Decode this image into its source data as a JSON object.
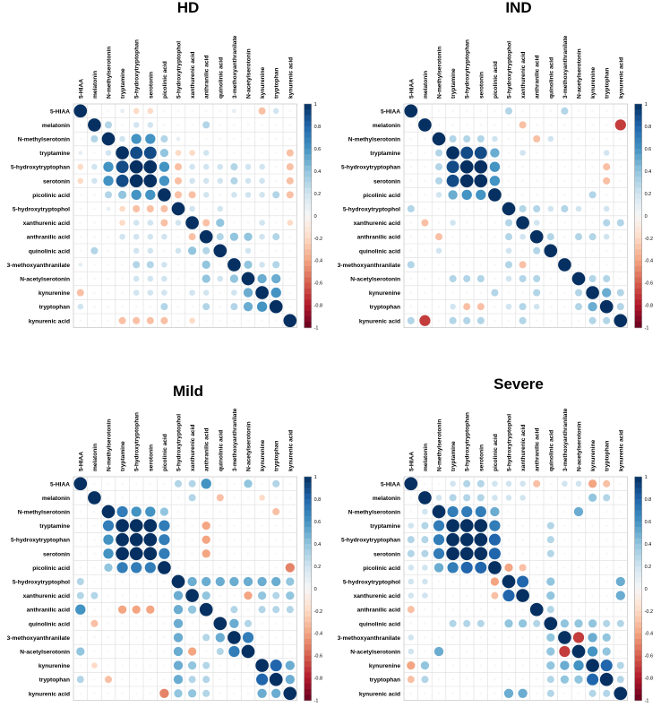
{
  "figure": {
    "variables": [
      "5-HIAA",
      "melatonin",
      "N-methylserotonin",
      "tryptamine",
      "5-hydroxytryptophan",
      "serotonin",
      "picolinic acid",
      "5-hydroxytryptophol",
      "xanthurenic acid",
      "anthranilic acid",
      "quinolinic acid",
      "3-methoxyanthranilate",
      "N-acetylserotonin",
      "kynurenine",
      "tryptophan",
      "kynurenic acid"
    ],
    "colorbar_ticks": [
      "1",
      "0.8",
      "0.6",
      "0.4",
      "0.2",
      "0",
      "-0.2",
      "-0.4",
      "-0.6",
      "-0.8",
      "-1"
    ],
    "colors": {
      "positive": "#053061",
      "mid": "#f7f7f7",
      "negative": "#67001f",
      "grid": "#dddddd"
    }
  },
  "chart_data": [
    {
      "type": "heatmap",
      "title": "HD",
      "value_range": [
        -1,
        1
      ],
      "matrix": [
        [
          1,
          0,
          0,
          0.1,
          -0.2,
          -0.2,
          0,
          0,
          0,
          0,
          0,
          0.1,
          0,
          -0.3,
          0.2,
          0
        ],
        [
          0,
          1,
          0.3,
          0,
          0.2,
          0.2,
          0,
          0,
          0,
          0.3,
          0,
          0,
          0,
          0,
          0,
          0
        ],
        [
          0,
          0.3,
          1,
          0.2,
          0.6,
          0.6,
          0.3,
          0.1,
          0,
          0,
          0,
          0,
          0,
          0,
          0,
          0
        ],
        [
          0.1,
          0,
          0.2,
          1,
          0.9,
          0.9,
          0.4,
          -0.2,
          -0.2,
          0.2,
          0,
          0,
          0,
          0,
          0,
          -0.3
        ],
        [
          -0.2,
          0.2,
          0.6,
          0.9,
          1,
          1,
          0.6,
          -0.3,
          0.2,
          0.2,
          0.2,
          0.3,
          0.2,
          0.2,
          0,
          -0.3
        ],
        [
          -0.2,
          0.2,
          0.6,
          0.9,
          1,
          1,
          0.6,
          -0.3,
          0.2,
          0.2,
          0.2,
          0.3,
          0.2,
          0.2,
          0,
          -0.3
        ],
        [
          0,
          0,
          0.3,
          0.4,
          0.6,
          0.6,
          1,
          -0.3,
          -0.3,
          0.2,
          0,
          0.2,
          0.2,
          0.2,
          0.3,
          -0.3
        ],
        [
          0,
          0,
          0.1,
          -0.2,
          -0.3,
          -0.3,
          -0.3,
          1,
          0.2,
          0,
          0.2,
          0,
          0,
          0,
          0,
          0
        ],
        [
          0,
          0,
          0,
          -0.2,
          0.2,
          0.2,
          -0.3,
          0.2,
          1,
          -0.3,
          0.4,
          0,
          0,
          0.2,
          0,
          -0.2
        ],
        [
          0,
          0,
          0,
          0.2,
          0.2,
          0.2,
          0.2,
          0,
          -0.3,
          1,
          0.3,
          0.4,
          0.4,
          0.2,
          0.3,
          0
        ],
        [
          0,
          0.3,
          0,
          0,
          0.2,
          0.2,
          0,
          0.2,
          0.4,
          0.3,
          1,
          0,
          0.2,
          0,
          0,
          0
        ],
        [
          0.1,
          0,
          0,
          0,
          0.3,
          0.3,
          0.2,
          0,
          0,
          0.4,
          0,
          1,
          0.4,
          0.2,
          0.3,
          0
        ],
        [
          0,
          0,
          0,
          0,
          0.2,
          0.2,
          0.2,
          0,
          0,
          0.4,
          0.2,
          0.4,
          1,
          0.5,
          0.5,
          0
        ],
        [
          -0.3,
          0,
          0,
          0,
          0.2,
          0.2,
          0.2,
          0,
          0.2,
          0.2,
          0,
          0.2,
          0.5,
          1,
          0.6,
          0
        ],
        [
          0.2,
          0,
          0,
          0,
          0,
          0,
          0.3,
          0,
          0,
          0.3,
          0,
          0.3,
          0.5,
          0.6,
          1,
          0
        ],
        [
          0,
          0,
          0,
          -0.3,
          -0.3,
          -0.3,
          -0.3,
          0,
          -0.2,
          0,
          0,
          0,
          0,
          0,
          0,
          1
        ]
      ]
    },
    {
      "type": "heatmap",
      "title": "IND",
      "value_range": [
        -1,
        1
      ],
      "matrix": [
        [
          1,
          0,
          0,
          0,
          0,
          0,
          0,
          0.3,
          0,
          0,
          0,
          0.3,
          0,
          0,
          0,
          0
        ],
        [
          0,
          1,
          0,
          0,
          0,
          0,
          0,
          0,
          -0.3,
          0,
          0,
          0,
          0,
          0,
          0,
          -0.7
        ],
        [
          0,
          0,
          1,
          0.3,
          0.3,
          0.3,
          0.2,
          0,
          0,
          -0.3,
          0.2,
          0,
          0,
          0,
          0,
          0
        ],
        [
          0,
          0,
          0.3,
          1,
          0.9,
          0.9,
          0.5,
          0,
          0.2,
          0,
          0,
          0,
          0,
          0,
          0.2,
          0
        ],
        [
          0,
          0,
          0.3,
          0.9,
          1,
          1,
          0.6,
          0,
          0,
          0,
          0,
          0,
          0,
          0,
          -0.3,
          0
        ],
        [
          0,
          0,
          0.3,
          0.9,
          1,
          1,
          0.6,
          0,
          0,
          0,
          0,
          0,
          0,
          0,
          -0.3,
          0
        ],
        [
          0,
          0,
          0.2,
          0.5,
          0.6,
          0.6,
          1,
          0,
          0,
          0,
          0,
          0,
          0,
          0.3,
          0,
          0
        ],
        [
          0.3,
          0,
          0,
          0,
          0,
          0,
          0,
          1,
          0.3,
          0.3,
          0.2,
          0.3,
          0.2,
          0,
          0.2,
          0
        ],
        [
          0,
          -0.3,
          0,
          0.2,
          0,
          0,
          0,
          0.3,
          1,
          0.2,
          0,
          0,
          0,
          0,
          0.3,
          0.3
        ],
        [
          0,
          0,
          -0.3,
          0,
          0,
          0,
          0,
          0.3,
          0.2,
          1,
          0.3,
          0,
          0.3,
          0.3,
          0.2,
          0
        ],
        [
          0,
          0,
          0.2,
          0,
          0,
          0,
          0,
          0.2,
          0,
          0.3,
          1,
          0,
          0,
          0,
          0,
          0
        ],
        [
          0.3,
          0,
          0,
          0,
          0,
          0,
          0,
          0.3,
          -0.3,
          0,
          0,
          1,
          0,
          0,
          0,
          0
        ],
        [
          0,
          0,
          0,
          0.3,
          0.3,
          0.3,
          0,
          0.2,
          0.3,
          0.3,
          0,
          0,
          1,
          0.3,
          0.3,
          0
        ],
        [
          0,
          0,
          0,
          0,
          0,
          0,
          0.3,
          0,
          0,
          0.3,
          0,
          0,
          0.3,
          1,
          0.5,
          0.3
        ],
        [
          0,
          0,
          0,
          0.2,
          -0.3,
          -0.3,
          0,
          0.2,
          0.3,
          0.2,
          0,
          0,
          0.3,
          0.5,
          1,
          0.3
        ],
        [
          0.3,
          -0.7,
          0,
          0.3,
          0.3,
          0.3,
          0,
          0,
          0.3,
          0,
          0,
          0,
          0,
          0.3,
          0.3,
          1
        ]
      ]
    },
    {
      "type": "heatmap",
      "title": "Mild",
      "value_range": [
        -1,
        1
      ],
      "matrix": [
        [
          1,
          0,
          0,
          0,
          0,
          0,
          0,
          0.3,
          0.3,
          0.6,
          0,
          0,
          0.4,
          0,
          0.3,
          0
        ],
        [
          0,
          1,
          0,
          0,
          0,
          0,
          0,
          0,
          0.3,
          0,
          -0.3,
          0,
          0,
          -0.2,
          0,
          0
        ],
        [
          0,
          0,
          1,
          0.7,
          0.6,
          0.6,
          0.4,
          0,
          0,
          0,
          0,
          0,
          0,
          0,
          -0.3,
          0
        ],
        [
          0,
          0,
          0.7,
          1,
          1,
          1,
          0.7,
          0,
          0,
          -0.4,
          0,
          0,
          0,
          0,
          0,
          0
        ],
        [
          0,
          0,
          0.6,
          1,
          1,
          1,
          0.7,
          0,
          0,
          -0.4,
          0,
          0,
          0,
          0,
          0,
          0
        ],
        [
          0,
          0,
          0.6,
          1,
          1,
          1,
          0.7,
          0,
          0,
          -0.4,
          0,
          0,
          0,
          0,
          0,
          0
        ],
        [
          0,
          0,
          0.4,
          0.7,
          0.7,
          0.7,
          1,
          0,
          0,
          0,
          0,
          0,
          0,
          0,
          0,
          -0.5
        ],
        [
          0.3,
          0,
          0,
          0,
          0,
          0,
          0,
          1,
          0.5,
          0.5,
          0.5,
          0.5,
          0.5,
          0.5,
          0.5,
          0.4
        ],
        [
          0.3,
          0.3,
          0,
          0,
          0,
          0,
          0,
          0.5,
          1,
          0.4,
          0,
          0,
          -0.4,
          0.4,
          0.3,
          0.4
        ],
        [
          0.6,
          0,
          0,
          -0.4,
          -0.4,
          -0.4,
          0,
          0.5,
          0.4,
          1,
          0,
          0.3,
          0,
          0.3,
          0.3,
          0.3
        ],
        [
          0,
          -0.3,
          0,
          0,
          0,
          0,
          0,
          0.5,
          0,
          0,
          1,
          0.5,
          0.3,
          0,
          0,
          0
        ],
        [
          0,
          0,
          0,
          0,
          0,
          0,
          0,
          0.5,
          0,
          0.3,
          0.5,
          1,
          0.7,
          0,
          0,
          0
        ],
        [
          0.4,
          0,
          0,
          0,
          0,
          0,
          0,
          0.5,
          -0.4,
          0,
          0.3,
          0.7,
          1,
          0,
          0,
          0
        ],
        [
          0,
          -0.2,
          0,
          0,
          0,
          0,
          0,
          0.5,
          0.4,
          0.3,
          0,
          0,
          0,
          1,
          0.8,
          0.5
        ],
        [
          0.3,
          0,
          -0.3,
          0,
          0,
          0,
          0,
          0.5,
          0.3,
          0.3,
          0,
          0,
          0,
          0.8,
          1,
          0.5
        ],
        [
          0,
          0,
          0,
          0,
          0,
          0,
          -0.5,
          0.4,
          0.4,
          0.3,
          0,
          0,
          0,
          0.5,
          0.5,
          1
        ]
      ]
    },
    {
      "type": "heatmap",
      "title": "Severe",
      "value_range": [
        -1,
        1
      ],
      "matrix": [
        [
          1,
          0,
          0,
          0.2,
          0.3,
          0.3,
          0.2,
          0.2,
          0.2,
          -0.3,
          0,
          0.2,
          0.2,
          -0.4,
          -0.3,
          0
        ],
        [
          0,
          1,
          0.2,
          0.3,
          0.3,
          0.3,
          0.2,
          0.2,
          0.2,
          0,
          0,
          0,
          0,
          0.4,
          0.3,
          0
        ],
        [
          0,
          0.2,
          1,
          0.7,
          0.7,
          0.7,
          0.5,
          0,
          0,
          0,
          0,
          0,
          0.5,
          0,
          0,
          0
        ],
        [
          0.2,
          0.3,
          0.7,
          1,
          1,
          1,
          0.7,
          0,
          0,
          0,
          0.3,
          0,
          0,
          0,
          0,
          0
        ],
        [
          0.3,
          0.3,
          0.7,
          1,
          1,
          1,
          0.8,
          0,
          0,
          0,
          0.3,
          0,
          0,
          0,
          0,
          0
        ],
        [
          0.3,
          0.3,
          0.7,
          1,
          1,
          1,
          0.8,
          0,
          0,
          0,
          0.3,
          0,
          0,
          0,
          0,
          0
        ],
        [
          0.2,
          0.2,
          0.5,
          0.7,
          0.8,
          0.8,
          1,
          -0.4,
          -0.3,
          0,
          0,
          0,
          0,
          0,
          0,
          0
        ],
        [
          0.2,
          0.2,
          0,
          0,
          0,
          0,
          -0.4,
          1,
          0.8,
          0,
          0.4,
          0,
          0,
          0,
          0,
          0.5
        ],
        [
          0.2,
          0.2,
          0,
          0,
          0,
          0,
          -0.3,
          0.8,
          1,
          0,
          0.4,
          0,
          0,
          0,
          0,
          0.5
        ],
        [
          -0.3,
          0,
          0,
          0,
          0,
          0,
          0,
          0,
          0,
          1,
          0.3,
          0,
          0,
          0,
          0,
          0
        ],
        [
          0,
          0,
          0,
          0.3,
          0.3,
          0.3,
          0,
          0.4,
          0.4,
          0.3,
          1,
          0.4,
          0.4,
          0.4,
          0.3,
          0.3
        ],
        [
          0.2,
          0,
          0,
          0,
          0,
          0,
          0,
          0,
          0,
          0,
          0.4,
          1,
          -0.7,
          0.5,
          0.4,
          0
        ],
        [
          0.2,
          0,
          0.5,
          0,
          0,
          0,
          0,
          0,
          0,
          0,
          0.4,
          -0.7,
          1,
          0.6,
          0.4,
          0
        ],
        [
          -0.4,
          0.4,
          0,
          0,
          0,
          0,
          0,
          0,
          0,
          0,
          0.4,
          0.5,
          0.6,
          1,
          0.8,
          0.3
        ],
        [
          -0.3,
          0.3,
          0,
          0,
          0,
          0,
          0,
          0,
          0,
          0,
          0.3,
          0.4,
          0.4,
          0.8,
          1,
          0.3
        ],
        [
          0,
          0,
          0,
          0,
          0,
          0,
          0,
          0.5,
          0.5,
          0,
          0.3,
          0,
          0,
          0.3,
          0.3,
          1
        ]
      ]
    }
  ]
}
